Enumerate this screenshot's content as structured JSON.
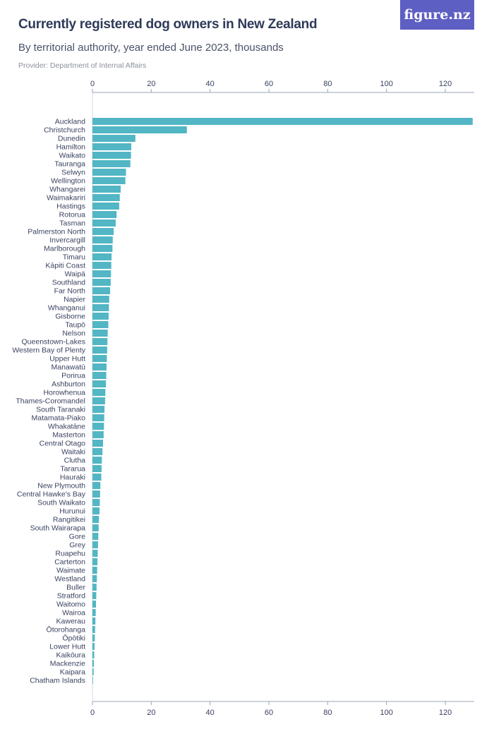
{
  "header": {
    "title": "Currently registered dog owners in New Zealand",
    "subtitle": "By territorial authority, year ended June 2023, thousands",
    "provider": "Provider: Department of Internal Affairs"
  },
  "logo": {
    "text": "figure.nz"
  },
  "colors": {
    "bar": "#52b6c4",
    "axis": "#9aa3b5",
    "text": "#3a4260",
    "logo_bg": "#5e5fc2"
  },
  "chart_data": {
    "type": "bar",
    "orientation": "horizontal",
    "xlim": [
      0,
      130
    ],
    "ticks": [
      0,
      20,
      40,
      60,
      80,
      100,
      120
    ],
    "grid": false,
    "categories": [
      "Auckland",
      "Christchurch",
      "Dunedin",
      "Hamilton",
      "Waikato",
      "Tauranga",
      "Selwyn",
      "Wellington",
      "Whangarei",
      "Waimakariri",
      "Hastings",
      "Rotorua",
      "Tasman",
      "Palmerston North",
      "Invercargill",
      "Marlborough",
      "Timaru",
      "Kāpiti Coast",
      "Waipā",
      "Southland",
      "Far North",
      "Napier",
      "Whanganui",
      "Gisborne",
      "Taupō",
      "Nelson",
      "Queenstown-Lakes",
      "Western Bay of Plenty",
      "Upper Hutt",
      "Manawatū",
      "Porirua",
      "Ashburton",
      "Horowhenua",
      "Thames-Coromandel",
      "South Taranaki",
      "Matamata-Piako",
      "Whakatāne",
      "Masterton",
      "Central Otago",
      "Waitaki",
      "Clutha",
      "Tararua",
      "Hauraki",
      "New Plymouth",
      "Central Hawke's Bay",
      "South Waikato",
      "Hurunui",
      "Rangitikei",
      "South Wairarapa",
      "Gore",
      "Grey",
      "Ruapehu",
      "Carterton",
      "Waimate",
      "Westland",
      "Buller",
      "Stratford",
      "Waitomo",
      "Wairoa",
      "Kawerau",
      "Ōtorohanga",
      "Ōpōtiki",
      "Lower Hutt",
      "Kaikōura",
      "Mackenzie",
      "Kaipara",
      "Chatham Islands"
    ],
    "values": [
      129.3,
      32.1,
      14.6,
      13.2,
      13.1,
      12.9,
      11.4,
      11.2,
      9.6,
      9.3,
      9.1,
      8.2,
      7.9,
      7.2,
      6.9,
      6.8,
      6.5,
      6.4,
      6.3,
      6.2,
      6.0,
      5.7,
      5.6,
      5.5,
      5.4,
      5.2,
      5.1,
      5.0,
      4.9,
      4.8,
      4.7,
      4.6,
      4.4,
      4.3,
      4.1,
      4.0,
      3.9,
      3.8,
      3.6,
      3.4,
      3.2,
      3.1,
      3.0,
      2.7,
      2.6,
      2.5,
      2.4,
      2.2,
      2.1,
      2.0,
      1.9,
      1.8,
      1.7,
      1.6,
      1.5,
      1.4,
      1.3,
      1.2,
      1.1,
      1.0,
      0.9,
      0.8,
      0.7,
      0.6,
      0.5,
      0.4,
      0.1
    ]
  }
}
